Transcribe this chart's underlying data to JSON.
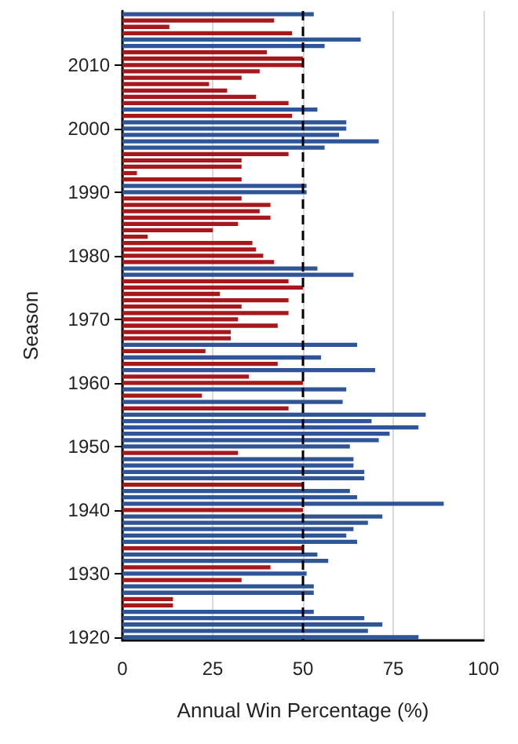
{
  "chart_data": {
    "type": "bar",
    "orientation": "horizontal",
    "xlabel": "Annual Win Percentage (%)",
    "ylabel": "Season",
    "categories": [
      null,
      null,
      null,
      null,
      null,
      null,
      null,
      null,
      "2010",
      null,
      null,
      null,
      null,
      null,
      null,
      null,
      null,
      null,
      "2000",
      null,
      null,
      null,
      null,
      null,
      null,
      null,
      null,
      null,
      "1990",
      null,
      null,
      null,
      null,
      null,
      null,
      null,
      null,
      null,
      "1980",
      null,
      null,
      null,
      null,
      null,
      null,
      null,
      null,
      null,
      "1970",
      null,
      null,
      null,
      null,
      null,
      null,
      null,
      null,
      null,
      "1960",
      null,
      null,
      null,
      null,
      null,
      null,
      null,
      null,
      null,
      "1950",
      null,
      null,
      null,
      null,
      null,
      null,
      null,
      null,
      null,
      "1940",
      null,
      null,
      null,
      null,
      null,
      null,
      null,
      null,
      null,
      "1930",
      null,
      null,
      null,
      null,
      null,
      null,
      null,
      null,
      null,
      "1920"
    ],
    "values": [
      53,
      42,
      13,
      47,
      66,
      56,
      40,
      50,
      50,
      38,
      33,
      24,
      29,
      37,
      46,
      54,
      47,
      62,
      62,
      60,
      71,
      56,
      46,
      33,
      33,
      4,
      33,
      51,
      51,
      33,
      41,
      38,
      41,
      32,
      25,
      7,
      36,
      37,
      39,
      42,
      54,
      64,
      46,
      50,
      27,
      46,
      33,
      46,
      32,
      43,
      30,
      30,
      65,
      23,
      55,
      43,
      70,
      35,
      50,
      62,
      22,
      61,
      46,
      84,
      69,
      82,
      74,
      71,
      63,
      32,
      64,
      64,
      67,
      67,
      50,
      63,
      65,
      89,
      50,
      72,
      68,
      64,
      62,
      65,
      50,
      54,
      57,
      41,
      51,
      33,
      53,
      53,
      14,
      14,
      53,
      67,
      72,
      68,
      82
    ],
    "colors": [
      "#2f5597",
      "#a5191c",
      "#a5191c",
      "#a5191c",
      "#2f5597",
      "#2f5597",
      "#a5191c",
      "#a5191c",
      "#a5191c",
      "#a5191c",
      "#a5191c",
      "#a5191c",
      "#a5191c",
      "#a5191c",
      "#a5191c",
      "#2f5597",
      "#a5191c",
      "#2f5597",
      "#2f5597",
      "#2f5597",
      "#2f5597",
      "#2f5597",
      "#a5191c",
      "#a5191c",
      "#a5191c",
      "#a5191c",
      "#a5191c",
      "#2f5597",
      "#2f5597",
      "#a5191c",
      "#a5191c",
      "#a5191c",
      "#a5191c",
      "#a5191c",
      "#a5191c",
      "#a5191c",
      "#a5191c",
      "#a5191c",
      "#a5191c",
      "#a5191c",
      "#2f5597",
      "#2f5597",
      "#a5191c",
      "#a5191c",
      "#a5191c",
      "#a5191c",
      "#a5191c",
      "#a5191c",
      "#a5191c",
      "#a5191c",
      "#a5191c",
      "#a5191c",
      "#2f5597",
      "#a5191c",
      "#2f5597",
      "#a5191c",
      "#2f5597",
      "#a5191c",
      "#a5191c",
      "#2f5597",
      "#a5191c",
      "#2f5597",
      "#a5191c",
      "#2f5597",
      "#2f5597",
      "#2f5597",
      "#2f5597",
      "#2f5597",
      "#2f5597",
      "#a5191c",
      "#2f5597",
      "#2f5597",
      "#2f5597",
      "#2f5597",
      "#a5191c",
      "#2f5597",
      "#2f5597",
      "#2f5597",
      "#a5191c",
      "#2f5597",
      "#2f5597",
      "#2f5597",
      "#2f5597",
      "#2f5597",
      "#a5191c",
      "#2f5597",
      "#2f5597",
      "#a5191c",
      "#2f5597",
      "#a5191c",
      "#2f5597",
      "#2f5597",
      "#a5191c",
      "#a5191c",
      "#2f5597",
      "#2f5597",
      "#2f5597",
      "#2f5597",
      "#2f5597"
    ],
    "xlim": [
      0,
      100
    ],
    "xticks": [
      0,
      25,
      50,
      75,
      100
    ],
    "grid": "x",
    "ref_lines": [
      {
        "axis": "x",
        "value": 50,
        "color": "#000000",
        "line_style": "dashed"
      }
    ]
  }
}
